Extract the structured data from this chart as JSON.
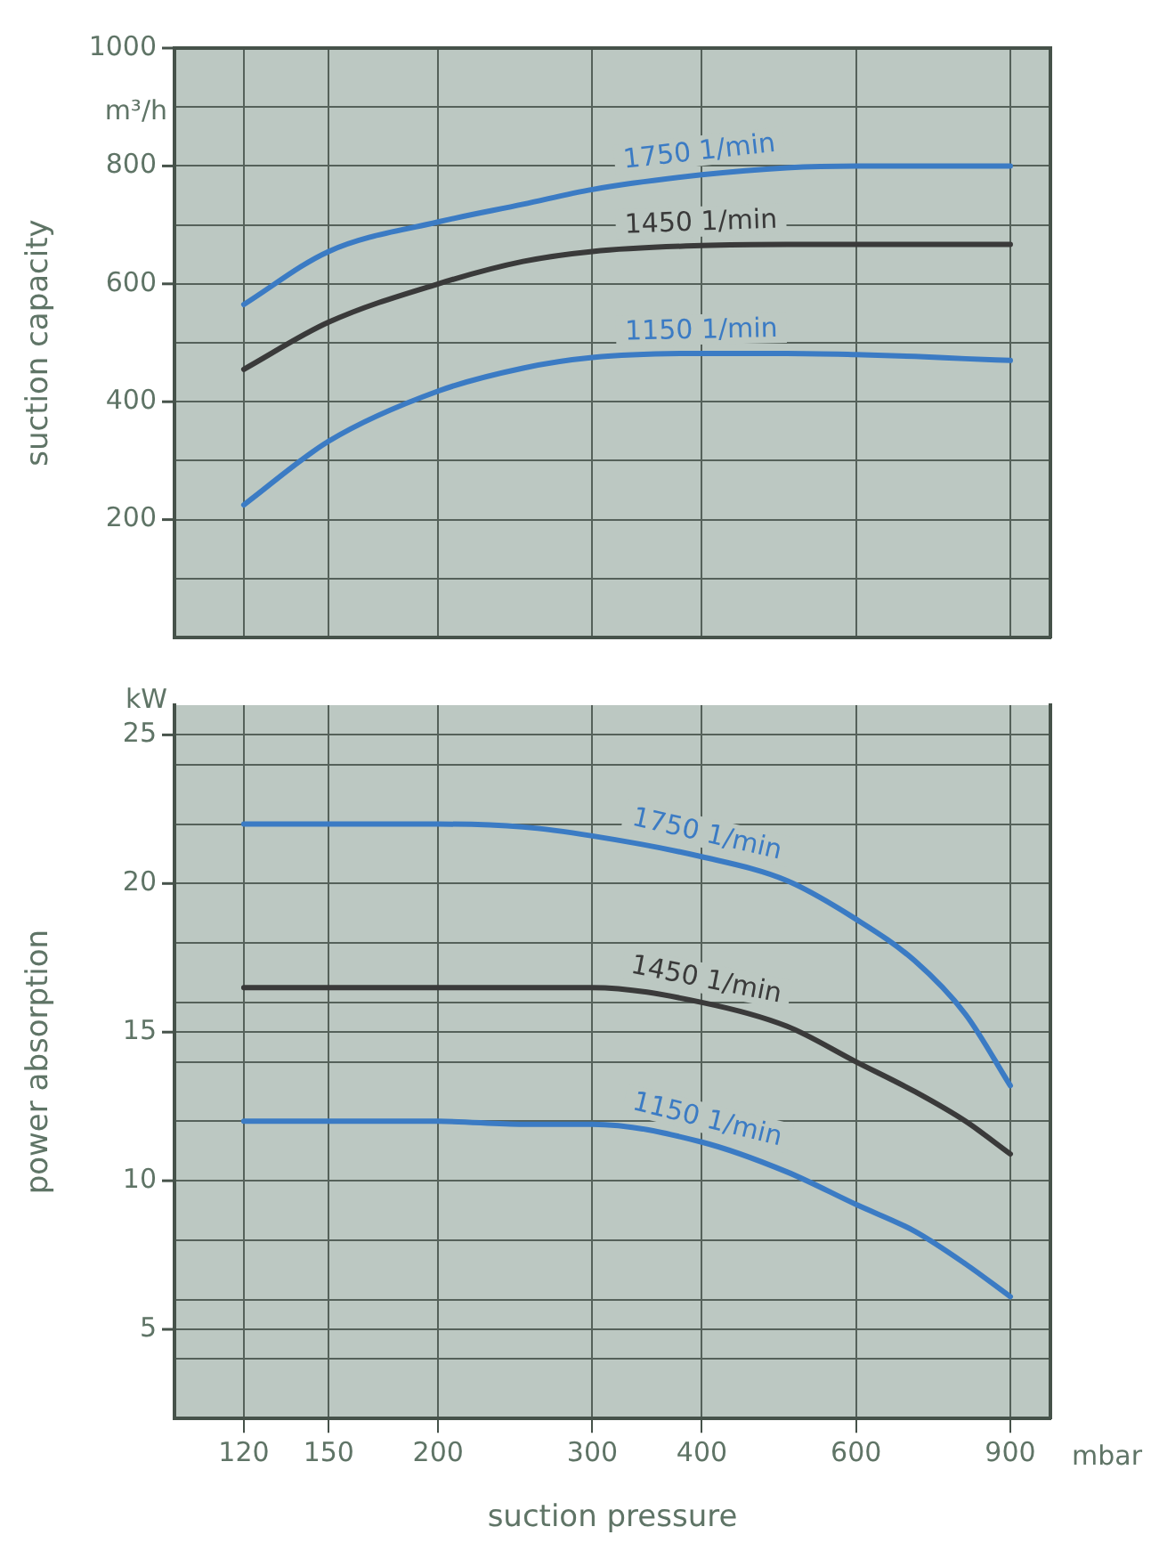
{
  "chart_data": [
    {
      "type": "line",
      "ylabel": "suction capacity",
      "annotations": [
        "m³/h"
      ],
      "x": [
        120,
        150,
        200,
        250,
        300,
        400,
        500,
        600,
        700,
        800,
        900
      ],
      "xlim": [
        100,
        1000
      ],
      "xticks": [
        120,
        150,
        200,
        300,
        400,
        600,
        900
      ],
      "log": "x",
      "ylim": [
        0,
        1000
      ],
      "yticks": [
        {
          "value": 100,
          "label": null
        },
        200,
        {
          "value": 300,
          "label": null
        },
        400,
        {
          "value": 500,
          "label": null
        },
        600,
        {
          "value": 700,
          "label": null
        },
        800,
        {
          "value": 900,
          "label": null
        },
        1000
      ],
      "tick_labels": "y",
      "grid": true,
      "legend": false,
      "marker": "none",
      "line_style": "solid",
      "series": [
        {
          "name": "1750 1/min",
          "color": "#3b7bc4",
          "values": [
            565,
            655,
            705,
            735,
            760,
            785,
            797,
            800,
            800,
            800,
            800
          ]
        },
        {
          "name": "1450 1/min",
          "color": "#3a3a3a",
          "values": [
            455,
            535,
            600,
            638,
            655,
            665,
            667,
            667,
            667,
            667,
            667
          ]
        },
        {
          "name": "1150 1/min",
          "color": "#3b7bc4",
          "values": [
            225,
            333,
            418,
            457,
            475,
            482,
            482,
            480,
            477,
            473,
            470
          ]
        }
      ]
    },
    {
      "type": "line",
      "ylabel": "power absorption",
      "xlabel": "suction pressure",
      "annotations": [
        "kW",
        "mbar"
      ],
      "x": [
        120,
        150,
        200,
        250,
        300,
        400,
        500,
        600,
        700,
        800,
        900
      ],
      "xlim": [
        100,
        1000
      ],
      "xticks": [
        120,
        150,
        200,
        300,
        400,
        600,
        900
      ],
      "log": "x",
      "ylim": [
        2,
        26
      ],
      "yticks": [
        {
          "value": 4,
          "label": null
        },
        5,
        {
          "value": 6,
          "label": null
        },
        {
          "value": 8,
          "label": null
        },
        10,
        {
          "value": 12,
          "label": null
        },
        {
          "value": 14,
          "label": null
        },
        15,
        {
          "value": 16,
          "label": null
        },
        {
          "value": 18,
          "label": null
        },
        20,
        {
          "value": 22,
          "label": null
        },
        {
          "value": 24,
          "label": null
        },
        25
      ],
      "grid": true,
      "legend": false,
      "marker": "none",
      "line_style": "solid",
      "series": [
        {
          "name": "1750 1/min",
          "color": "#3b7bc4",
          "values": [
            22,
            22,
            22,
            21.9,
            21.6,
            20.9,
            20.1,
            18.8,
            17.4,
            15.6,
            13.2
          ]
        },
        {
          "name": "1450 1/min",
          "color": "#3a3a3a",
          "values": [
            16.5,
            16.5,
            16.5,
            16.5,
            16.5,
            16,
            15.2,
            14,
            13,
            12,
            10.9
          ]
        },
        {
          "name": "1150 1/min",
          "color": "#3b7bc4",
          "values": [
            12,
            12,
            12,
            11.9,
            11.9,
            11.3,
            10.3,
            9.2,
            8.3,
            7.2,
            6.1
          ]
        }
      ]
    }
  ]
}
